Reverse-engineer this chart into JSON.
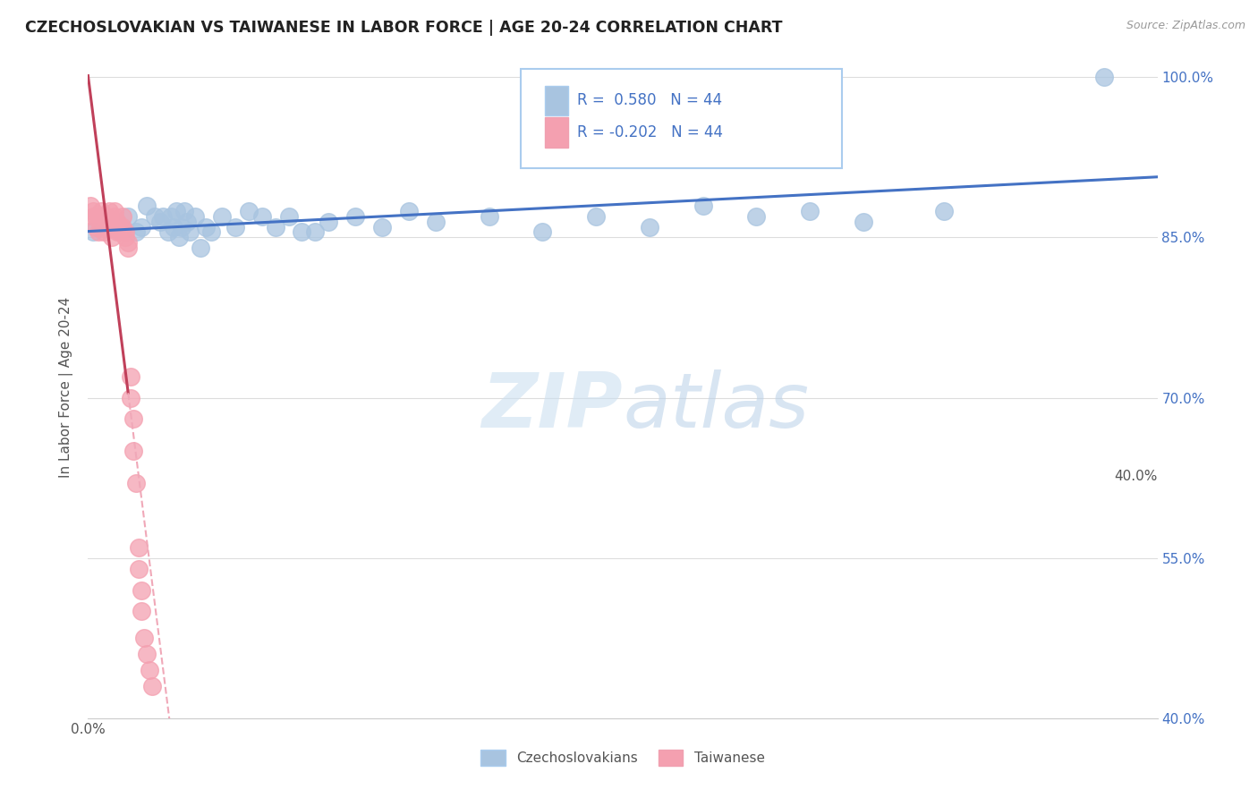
{
  "title": "CZECHOSLOVAKIAN VS TAIWANESE IN LABOR FORCE | AGE 20-24 CORRELATION CHART",
  "source": "Source: ZipAtlas.com",
  "ylabel": "In Labor Force | Age 20-24",
  "x_min": 0.0,
  "x_max": 0.4,
  "y_min": 0.4,
  "y_max": 1.02,
  "x_tick_left": "0.0%",
  "x_tick_right": "40.0%",
  "y_ticks": [
    0.4,
    0.55,
    0.7,
    0.85,
    1.0
  ],
  "y_tick_labels": [
    "40.0%",
    "55.0%",
    "70.0%",
    "85.0%",
    "100.0%"
  ],
  "czech_r": 0.58,
  "czech_n": 44,
  "taiwan_r": -0.202,
  "taiwan_n": 44,
  "czech_color": "#a8c4e0",
  "taiwan_color": "#f4a0b0",
  "trend_czech_color": "#4472c4",
  "trend_taiwan_solid_color": "#c0405a",
  "trend_taiwan_dash_color": "#f0a8b8",
  "background_color": "#ffffff",
  "czech_x": [
    0.002,
    0.015,
    0.018,
    0.02,
    0.022,
    0.025,
    0.027,
    0.028,
    0.03,
    0.031,
    0.032,
    0.033,
    0.034,
    0.035,
    0.036,
    0.037,
    0.038,
    0.04,
    0.042,
    0.044,
    0.046,
    0.05,
    0.055,
    0.06,
    0.065,
    0.07,
    0.075,
    0.08,
    0.085,
    0.09,
    0.1,
    0.11,
    0.12,
    0.13,
    0.15,
    0.17,
    0.19,
    0.21,
    0.23,
    0.25,
    0.27,
    0.29,
    0.32,
    0.38
  ],
  "czech_y": [
    0.855,
    0.87,
    0.855,
    0.86,
    0.88,
    0.87,
    0.865,
    0.87,
    0.855,
    0.87,
    0.86,
    0.875,
    0.85,
    0.86,
    0.875,
    0.865,
    0.855,
    0.87,
    0.84,
    0.86,
    0.855,
    0.87,
    0.86,
    0.875,
    0.87,
    0.86,
    0.87,
    0.855,
    0.855,
    0.865,
    0.87,
    0.86,
    0.875,
    0.865,
    0.87,
    0.855,
    0.87,
    0.86,
    0.88,
    0.87,
    0.875,
    0.865,
    0.875,
    1.0
  ],
  "taiwan_x": [
    0.001,
    0.002,
    0.002,
    0.003,
    0.003,
    0.004,
    0.004,
    0.005,
    0.005,
    0.005,
    0.006,
    0.006,
    0.007,
    0.007,
    0.008,
    0.008,
    0.009,
    0.009,
    0.01,
    0.01,
    0.01,
    0.011,
    0.011,
    0.012,
    0.012,
    0.013,
    0.013,
    0.014,
    0.014,
    0.015,
    0.015,
    0.016,
    0.016,
    0.017,
    0.017,
    0.018,
    0.019,
    0.019,
    0.02,
    0.02,
    0.021,
    0.022,
    0.023,
    0.024
  ],
  "taiwan_y": [
    0.88,
    0.875,
    0.87,
    0.87,
    0.86,
    0.87,
    0.855,
    0.87,
    0.86,
    0.875,
    0.865,
    0.855,
    0.86,
    0.87,
    0.875,
    0.865,
    0.86,
    0.85,
    0.86,
    0.87,
    0.875,
    0.865,
    0.855,
    0.86,
    0.855,
    0.87,
    0.86,
    0.855,
    0.85,
    0.845,
    0.84,
    0.72,
    0.7,
    0.68,
    0.65,
    0.62,
    0.56,
    0.54,
    0.52,
    0.5,
    0.475,
    0.46,
    0.445,
    0.43
  ]
}
